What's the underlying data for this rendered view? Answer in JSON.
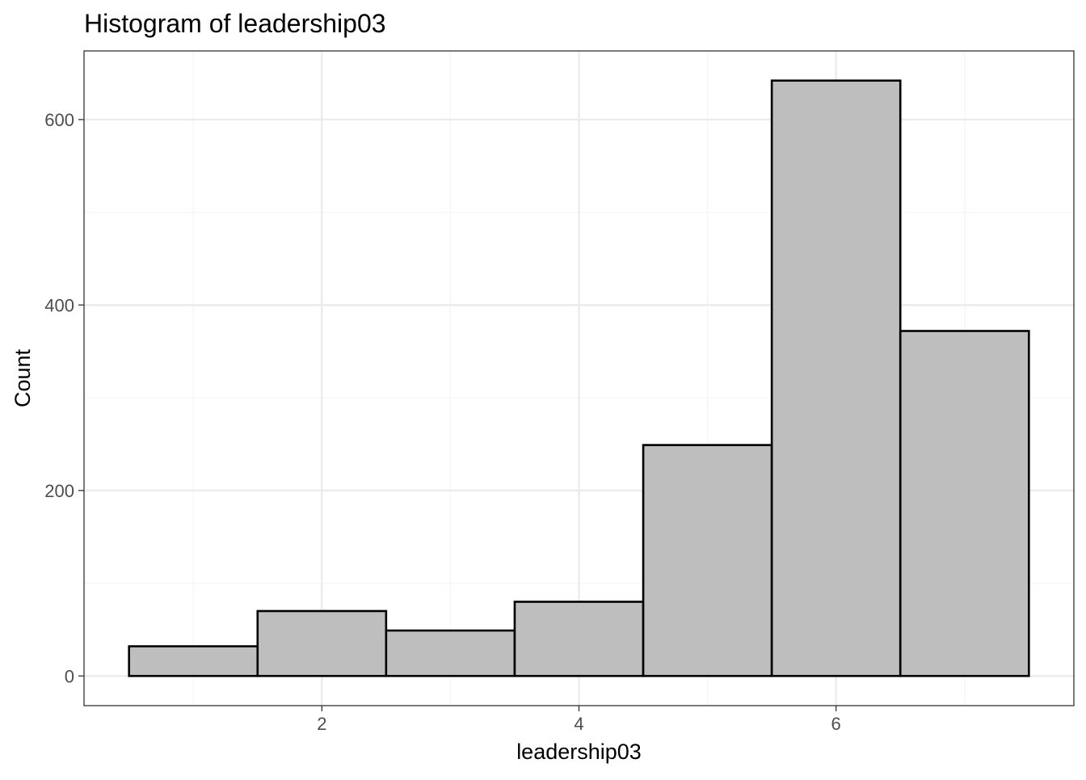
{
  "chart_data": {
    "type": "bar",
    "title": "Histogram of leadership03",
    "xlabel": "leadership03",
    "ylabel": "Count",
    "bins": [
      {
        "x_start": 0.5,
        "x_end": 1.5,
        "count": 32
      },
      {
        "x_start": 1.5,
        "x_end": 2.5,
        "count": 70
      },
      {
        "x_start": 2.5,
        "x_end": 3.5,
        "count": 49
      },
      {
        "x_start": 3.5,
        "x_end": 4.5,
        "count": 80
      },
      {
        "x_start": 4.5,
        "x_end": 5.5,
        "count": 249
      },
      {
        "x_start": 5.5,
        "x_end": 6.5,
        "count": 642
      },
      {
        "x_start": 6.5,
        "x_end": 7.5,
        "count": 372
      }
    ],
    "xlim": [
      0.15,
      7.85
    ],
    "ylim": [
      -32,
      674
    ],
    "x_ticks": [
      2,
      4,
      6
    ],
    "x_tick_labels": [
      "2",
      "4",
      "6"
    ],
    "x_minor_ticks": [
      1,
      3,
      5,
      7
    ],
    "y_ticks": [
      0,
      200,
      400,
      600
    ],
    "y_tick_labels": [
      "0",
      "200",
      "400",
      "600"
    ],
    "y_minor_ticks": [
      100,
      300,
      500
    ],
    "grid": true,
    "legend": "none",
    "colors": {
      "bar_fill": "#bebebe",
      "bar_stroke": "#000000",
      "grid_major": "#ebebeb",
      "grid_minor": "#f5f5f5",
      "panel_border": "#333333",
      "tick_text": "#4d4d4d",
      "title_text": "#000000"
    }
  }
}
